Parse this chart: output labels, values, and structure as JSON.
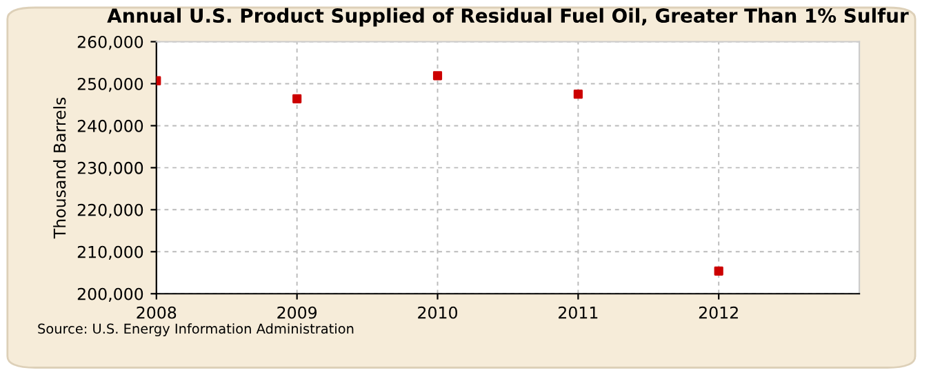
{
  "chart_data": {
    "type": "scatter",
    "title": "Annual U.S. Product Supplied of Residual Fuel Oil, Greater Than 1% Sulfur",
    "ylabel": "Thousand Barrels",
    "annotations": [
      "Source: U.S. Energy Information Administration"
    ],
    "x": [
      2008,
      2009,
      2010,
      2011,
      2012
    ],
    "series": [
      {
        "color": "#cc0000",
        "values": [
          250700,
          246400,
          251900,
          247500,
          205400
        ]
      }
    ],
    "xlim": [
      2008,
      2013
    ],
    "xticks": [
      2008,
      2009,
      2010,
      2011,
      2012
    ],
    "ylim": [
      200000,
      260000
    ],
    "yticks": [
      {
        "value": 200000,
        "label": "200,000"
      },
      {
        "value": 210000,
        "label": "210,000"
      },
      {
        "value": 220000,
        "label": "220,000"
      },
      {
        "value": 230000,
        "label": "230,000"
      },
      {
        "value": 240000,
        "label": "240,000"
      },
      {
        "value": 250000,
        "label": "250,000"
      },
      {
        "value": 260000,
        "label": "260,000"
      }
    ],
    "grid": true,
    "marker": "square",
    "legend": false
  }
}
